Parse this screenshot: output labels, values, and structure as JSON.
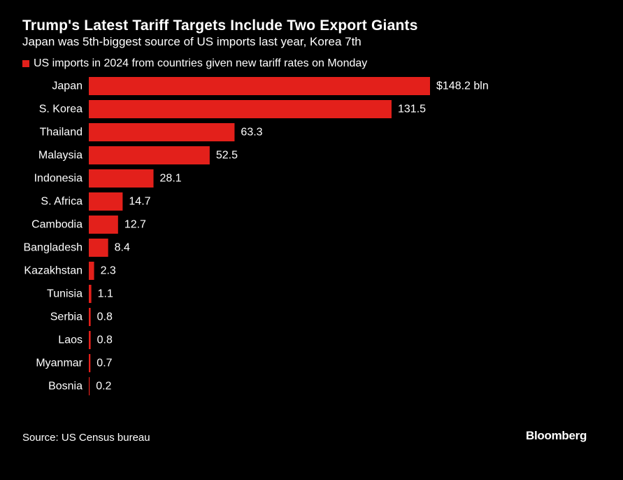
{
  "header": {
    "title": "Trump's Latest Tariff Targets Include Two Export Giants",
    "subtitle": "Japan was 5th-biggest source of US imports last year, Korea 7th"
  },
  "legend": {
    "label": "US imports in 2024 from countries given new tariff rates on Monday"
  },
  "colors": {
    "bar": "#e3201b",
    "background": "#000000",
    "text": "#ffffff"
  },
  "chart_data": {
    "type": "bar",
    "orientation": "horizontal",
    "title": "Trump's Latest Tariff Targets Include Two Export Giants",
    "subtitle": "Japan was 5th-biggest source of US imports last year, Korea 7th",
    "series": [
      {
        "name": "US imports in 2024 from countries given new tariff rates on Monday",
        "values": [
          148.2,
          131.5,
          63.3,
          52.5,
          28.1,
          14.7,
          12.7,
          8.4,
          2.3,
          1.1,
          0.8,
          0.8,
          0.7,
          0.2
        ]
      }
    ],
    "categories": [
      "Japan",
      "S. Korea",
      "Thailand",
      "Malaysia",
      "Indonesia",
      "S. Africa",
      "Cambodia",
      "Bangladesh",
      "Kazakhstan",
      "Tunisia",
      "Serbia",
      "Laos",
      "Myanmar",
      "Bosnia"
    ],
    "value_labels": [
      "$148.2 bln",
      "131.5",
      "63.3",
      "52.5",
      "28.1",
      "14.7",
      "12.7",
      "8.4",
      "2.3",
      "1.1",
      "0.8",
      "0.8",
      "0.7",
      "0.2"
    ],
    "xlim": [
      0,
      148.2
    ],
    "unit": "$ bln",
    "grid": false,
    "legend_position": "top-left"
  },
  "footer": {
    "source": "Source: US Census bureau",
    "logo": "Bloomberg"
  }
}
